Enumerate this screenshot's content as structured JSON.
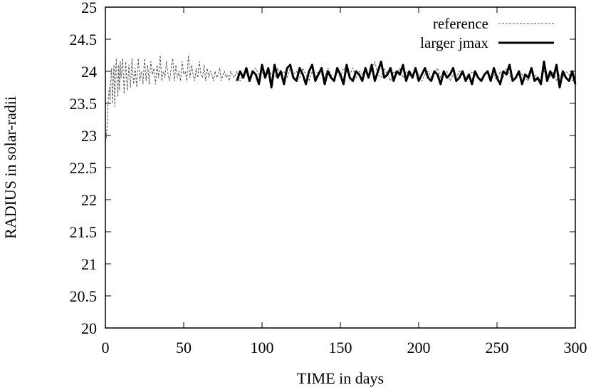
{
  "chart_data": {
    "type": "line",
    "xlabel": "TIME in days",
    "ylabel": "RADIUS in solar-radii",
    "xlim": [
      0,
      300
    ],
    "ylim": [
      20,
      25
    ],
    "xticks": [
      0,
      50,
      100,
      150,
      200,
      250,
      300
    ],
    "xtick_labels": [
      "0",
      "50",
      "100",
      "150",
      "200",
      "250",
      "300"
    ],
    "yticks": [
      20,
      20.5,
      21,
      21.5,
      22,
      22.5,
      23,
      23.5,
      24,
      24.5,
      25
    ],
    "ytick_labels": [
      "20",
      "20.5",
      "21",
      "21.5",
      "22",
      "22.5",
      "23",
      "23.5",
      "24",
      "24.5",
      "25"
    ],
    "grid": false,
    "legend_position": "top-right",
    "series": [
      {
        "name": "reference",
        "style": "dashed",
        "color": "#555555",
        "x": [
          0,
          0.5,
          1,
          1.5,
          2,
          2.5,
          3,
          3.5,
          4,
          4.5,
          5,
          5.5,
          6,
          6.5,
          7,
          7.5,
          8,
          8.5,
          9,
          9.5,
          10,
          11,
          12,
          13,
          14,
          15,
          16,
          17,
          18,
          19,
          20,
          21,
          22,
          23,
          24,
          25,
          26,
          27,
          28,
          29,
          30,
          31,
          32,
          33,
          34,
          35,
          36,
          37,
          38,
          39,
          40,
          41,
          42,
          43,
          44,
          45,
          46,
          47,
          48,
          49,
          50,
          51,
          52,
          53,
          54,
          55,
          56,
          57,
          58,
          59,
          60,
          61,
          62,
          63,
          64,
          65,
          66,
          67,
          68,
          69,
          70,
          71,
          72,
          73,
          74,
          75,
          76,
          77,
          78,
          79,
          80,
          82,
          84,
          86,
          88,
          90,
          92,
          94,
          96,
          98,
          100,
          102,
          104,
          106,
          108,
          110,
          112,
          114,
          116,
          118,
          120,
          122,
          124,
          126,
          128,
          130,
          132,
          134,
          136,
          138,
          140,
          142,
          144,
          146,
          148,
          150,
          152,
          154,
          156,
          158,
          160,
          162,
          164,
          166,
          168,
          170,
          172,
          174,
          176,
          178,
          180,
          182,
          184,
          186,
          188,
          190,
          192,
          194,
          196,
          198,
          200,
          202,
          204,
          206,
          208,
          210,
          212,
          214,
          216,
          218,
          220,
          222,
          224,
          226,
          228,
          230,
          232,
          234,
          236,
          238,
          240,
          242,
          244,
          246,
          248,
          250,
          252,
          254,
          256,
          258,
          260,
          262,
          264,
          266,
          268,
          270,
          272,
          274,
          276,
          278,
          280,
          282,
          284,
          286,
          288,
          290,
          292,
          294,
          296,
          298,
          300
        ],
        "y": [
          22.9,
          22.95,
          23.1,
          23.4,
          23.6,
          23.75,
          23.55,
          23.9,
          24.05,
          23.5,
          23.85,
          24.1,
          23.45,
          24.0,
          24.2,
          23.8,
          23.6,
          24.1,
          23.7,
          24.15,
          23.9,
          24.2,
          23.65,
          24.15,
          23.7,
          24.1,
          23.75,
          24.2,
          23.8,
          24.05,
          23.75,
          24.2,
          23.85,
          24.0,
          23.8,
          24.2,
          23.85,
          24.1,
          23.8,
          24.15,
          23.95,
          24.05,
          23.8,
          24.1,
          23.9,
          24.25,
          23.85,
          24.0,
          23.9,
          24.15,
          23.95,
          23.85,
          24.05,
          24.2,
          23.85,
          24.1,
          23.9,
          24.0,
          23.85,
          24.15,
          23.95,
          24.0,
          23.85,
          24.25,
          23.9,
          24.1,
          23.95,
          23.85,
          24.05,
          23.9,
          24.15,
          23.95,
          23.9,
          24.1,
          23.85,
          24.05,
          23.9,
          24.0,
          23.95,
          23.85,
          24.0,
          23.9,
          23.95,
          24.05,
          23.85,
          23.95,
          24.0,
          23.9,
          23.95,
          23.85,
          24.0,
          23.9,
          24.0,
          23.85,
          23.95,
          24.05,
          23.9,
          24.0,
          24.05,
          23.95,
          24.0,
          23.9,
          24.05,
          23.95,
          23.9,
          24.05,
          23.95,
          24.0,
          23.9,
          24.05,
          23.95,
          24.0,
          23.9,
          24.05,
          23.95,
          23.85,
          24.0,
          23.9,
          24.0,
          23.95,
          23.9,
          24.05,
          23.95,
          23.85,
          24.0,
          23.9,
          24.05,
          24.0,
          23.95,
          24.05,
          23.9,
          24.0,
          23.95,
          24.05,
          23.9,
          24.0,
          24.15,
          23.95,
          23.9,
          24.05,
          23.95,
          23.85,
          24.0,
          23.95,
          24.05,
          23.9,
          24.0,
          23.95,
          23.9,
          24.05,
          23.95,
          23.85,
          23.95,
          24.0,
          23.9,
          23.95,
          24.05,
          23.9,
          23.95,
          24.0,
          23.85,
          23.95,
          23.9,
          24.0,
          23.95,
          23.85,
          23.9,
          24.0,
          23.95,
          23.9,
          23.85,
          23.95,
          24.0,
          23.9,
          23.95,
          23.85,
          24.0,
          23.9,
          24.05,
          23.95,
          23.85,
          23.9,
          24.0,
          23.95,
          23.9,
          23.85,
          24.0,
          23.95,
          23.9,
          23.85,
          24.0,
          23.95,
          23.9,
          24.0,
          23.85,
          23.95,
          23.9,
          24.0,
          23.95,
          23.85,
          23.9
        ]
      },
      {
        "name": "larger jmax",
        "style": "solid",
        "color": "#000000",
        "x": [
          84,
          86,
          88,
          90,
          92,
          94,
          96,
          98,
          100,
          102,
          104,
          106,
          108,
          110,
          112,
          114,
          116,
          118,
          120,
          122,
          124,
          126,
          128,
          130,
          132,
          134,
          136,
          138,
          140,
          142,
          144,
          146,
          148,
          150,
          152,
          154,
          156,
          158,
          160,
          162,
          164,
          166,
          168,
          170,
          172,
          174,
          176,
          178,
          180,
          182,
          184,
          186,
          188,
          190,
          192,
          194,
          196,
          198,
          200,
          202,
          204,
          206,
          208,
          210,
          212,
          214,
          216,
          218,
          220,
          222,
          224,
          226,
          228,
          230,
          232,
          234,
          236,
          238,
          240,
          242,
          244,
          246,
          248,
          250,
          252,
          254,
          256,
          258,
          260,
          262,
          264,
          266,
          268,
          270,
          272,
          274,
          276,
          278,
          280,
          282,
          284,
          286,
          288,
          290,
          292,
          294,
          296,
          298,
          300
        ],
        "y": [
          23.85,
          24.0,
          23.9,
          24.05,
          23.85,
          24.0,
          23.95,
          23.8,
          24.1,
          23.9,
          24.05,
          23.75,
          24.1,
          23.9,
          24.0,
          23.8,
          24.05,
          24.1,
          23.9,
          23.85,
          24.05,
          23.95,
          23.8,
          24.0,
          24.1,
          23.85,
          23.95,
          24.05,
          23.8,
          24.0,
          23.9,
          23.85,
          24.05,
          23.95,
          23.8,
          24.1,
          23.9,
          23.85,
          24.0,
          23.95,
          23.85,
          24.05,
          23.9,
          24.1,
          23.85,
          24.0,
          24.15,
          23.9,
          23.95,
          24.05,
          23.85,
          24.0,
          23.95,
          24.1,
          23.85,
          24.0,
          23.9,
          24.05,
          23.85,
          23.95,
          24.05,
          23.9,
          23.85,
          24.0,
          23.95,
          23.8,
          24.0,
          23.9,
          23.95,
          24.05,
          23.85,
          23.9,
          24.0,
          23.85,
          23.95,
          23.8,
          24.0,
          23.9,
          23.85,
          23.95,
          24.0,
          23.85,
          24.05,
          23.9,
          23.8,
          24.0,
          23.95,
          24.1,
          23.85,
          23.9,
          24.0,
          23.8,
          23.95,
          23.9,
          24.05,
          23.85,
          23.9,
          23.8,
          24.15,
          23.85,
          24.0,
          23.9,
          24.1,
          23.75,
          24.0,
          23.9,
          23.85,
          24.0,
          23.8
        ]
      }
    ]
  }
}
